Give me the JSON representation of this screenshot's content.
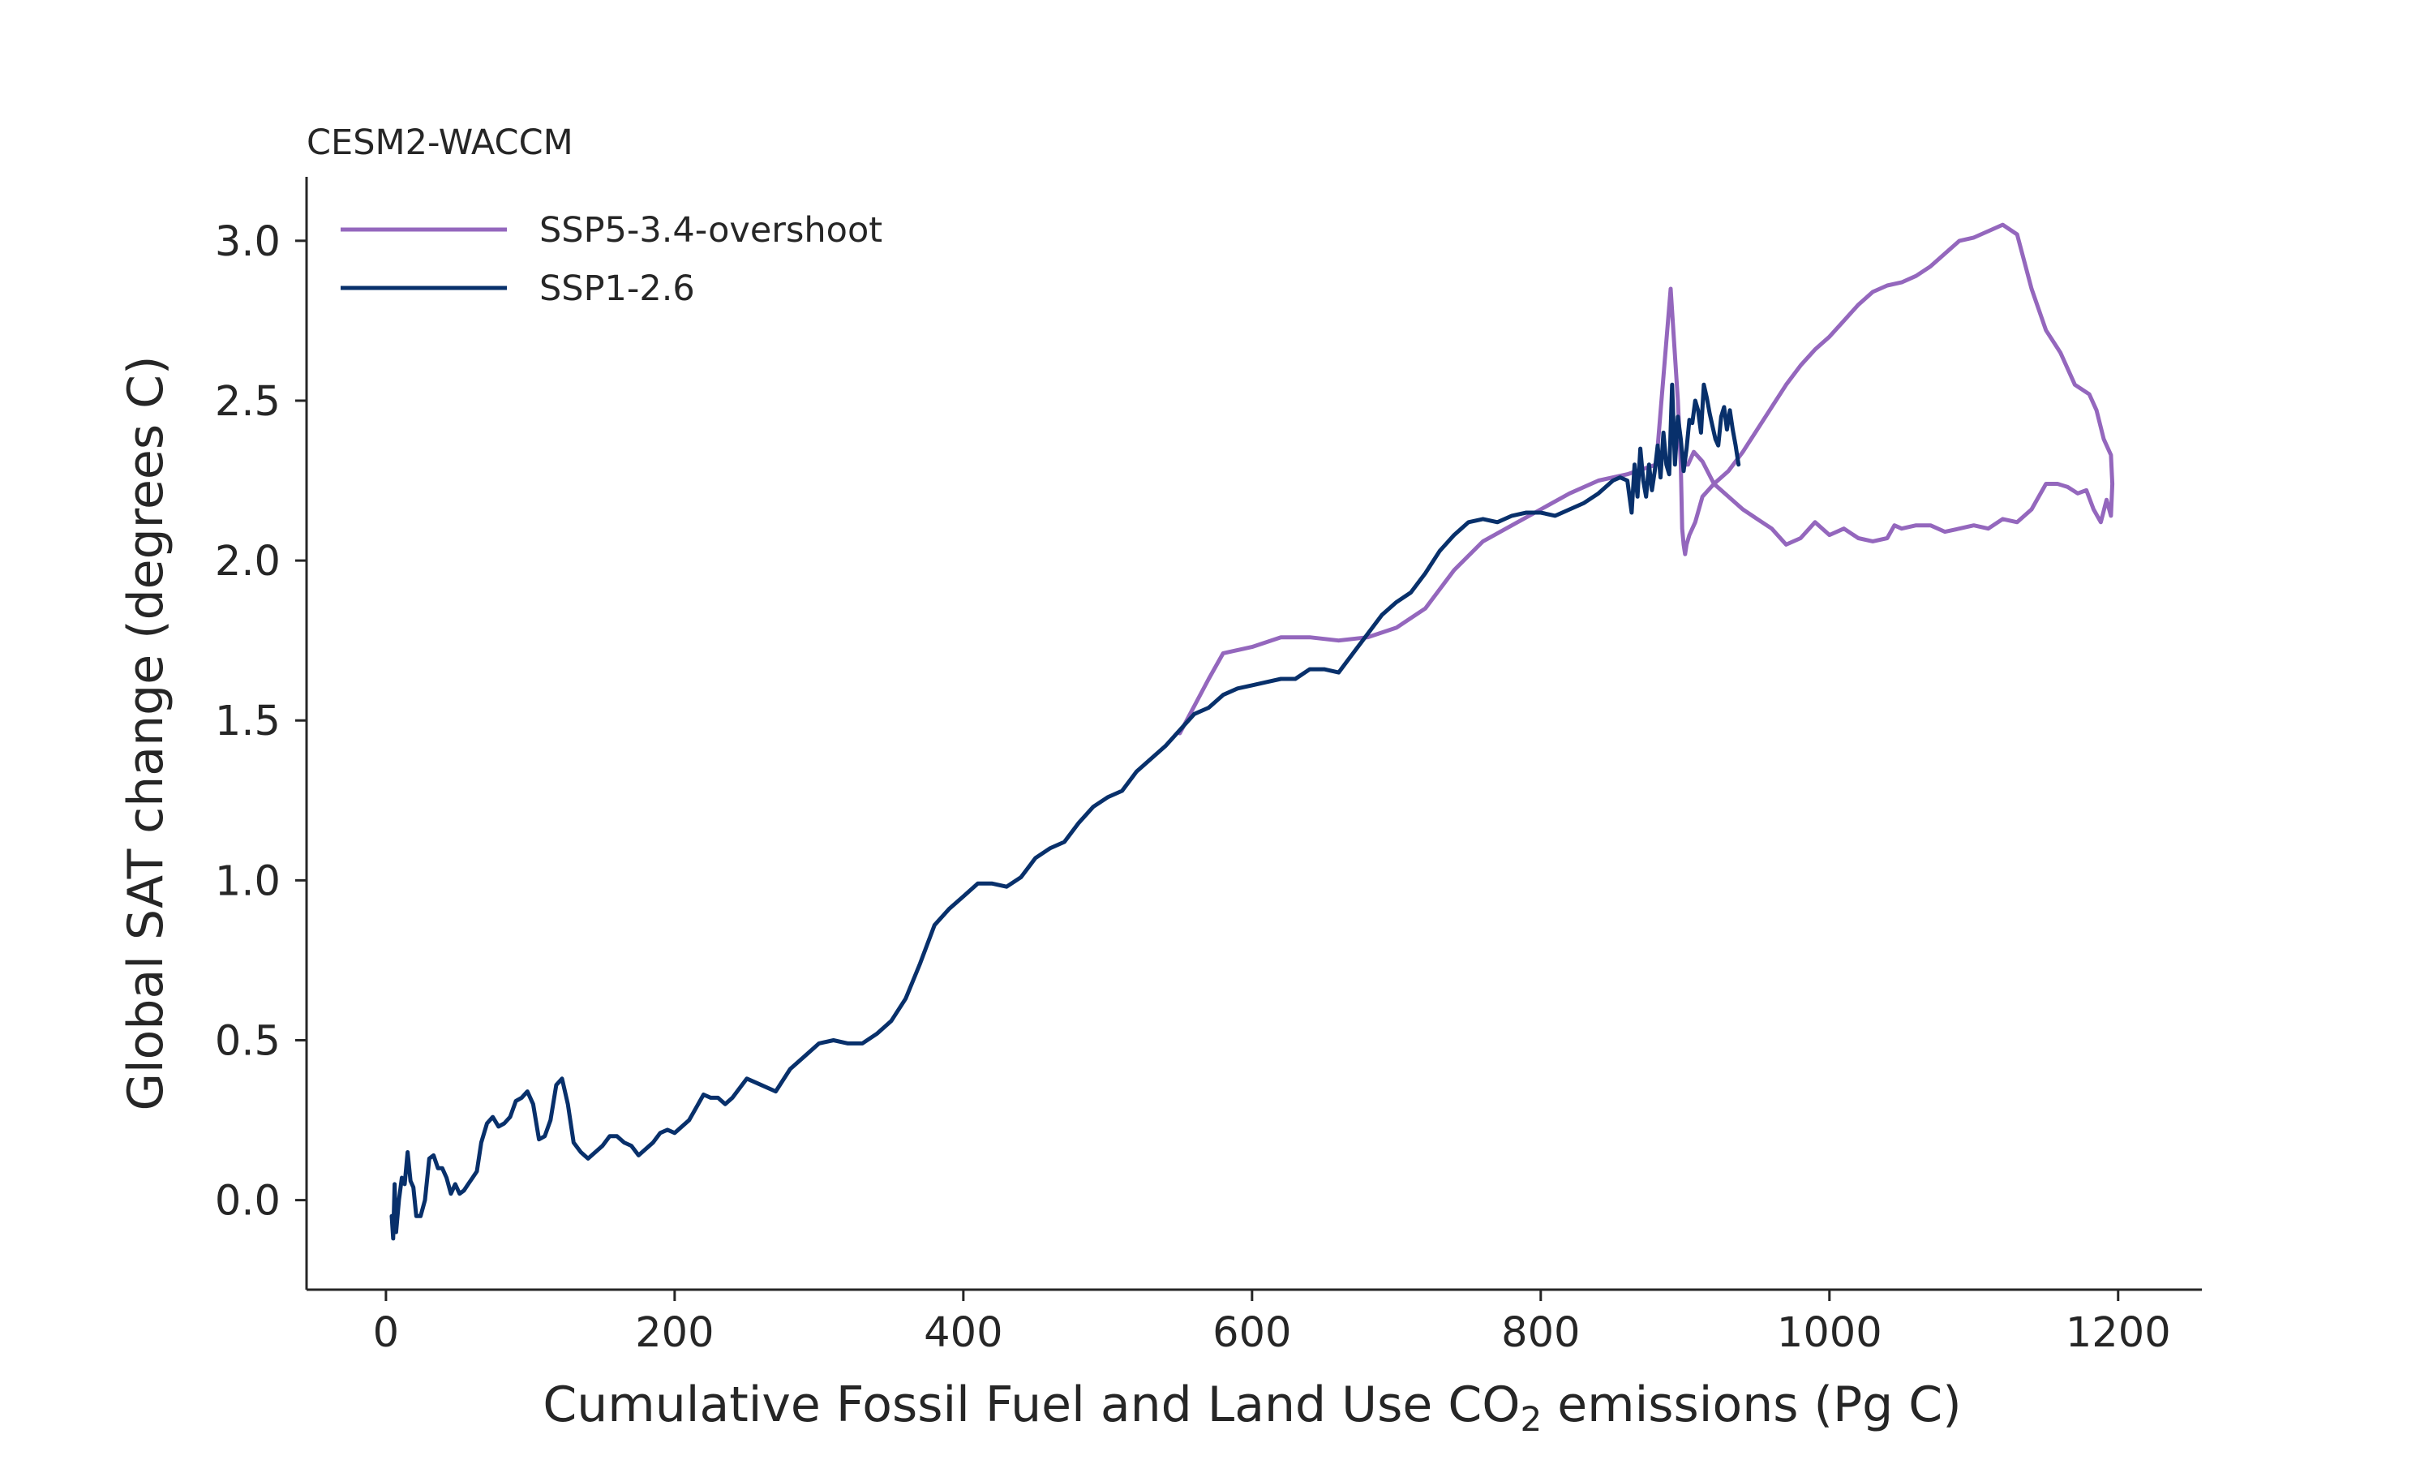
{
  "chart_data": {
    "type": "line",
    "title": "CESM2-WACCM",
    "xlabel_main": "Cumulative Fossil Fuel and Land Use CO",
    "xlabel_sub": "2",
    "xlabel_tail": " emissions (Pg C)",
    "ylabel": "Global SAT change (degrees C)",
    "xlim": [
      -55,
      1258
    ],
    "ylim": [
      -0.28,
      3.2
    ],
    "xticks": [
      0,
      200,
      400,
      600,
      800,
      1000,
      1200
    ],
    "yticks": [
      0.0,
      0.5,
      1.0,
      1.5,
      2.0,
      2.5,
      3.0
    ],
    "xtick_labels": [
      "0",
      "200",
      "400",
      "600",
      "800",
      "1000",
      "1200"
    ],
    "ytick_labels": [
      "0.0",
      "0.5",
      "1.0",
      "1.5",
      "2.0",
      "2.5",
      "3.0"
    ],
    "grid": false,
    "legend_position": "top-left",
    "series": [
      {
        "name": "SSP5-3.4-overshoot",
        "color": "#9467bd",
        "x": [
          550,
          570,
          580,
          600,
          620,
          640,
          660,
          680,
          700,
          720,
          740,
          760,
          780,
          800,
          820,
          840,
          860,
          880,
          890,
          895,
          897,
          898,
          899,
          900,
          901,
          903,
          907,
          912,
          920,
          930,
          940,
          950,
          960,
          970,
          980,
          990,
          1000,
          1010,
          1020,
          1030,
          1040,
          1050,
          1060,
          1070,
          1080,
          1090,
          1100,
          1110,
          1120,
          1130,
          1140,
          1150,
          1160,
          1170,
          1180,
          1185,
          1190,
          1195,
          1196,
          1195,
          1192,
          1188,
          1183,
          1178,
          1172,
          1165,
          1158,
          1150,
          1140,
          1130,
          1120,
          1110,
          1100,
          1090,
          1080,
          1070,
          1060,
          1050,
          1045,
          1040,
          1030,
          1020,
          1010,
          1000,
          990,
          980,
          970,
          960,
          950,
          940,
          930,
          920,
          912,
          906,
          902,
          900
        ],
        "y": [
          1.46,
          1.63,
          1.71,
          1.73,
          1.76,
          1.76,
          1.75,
          1.76,
          1.79,
          1.85,
          1.97,
          2.06,
          2.11,
          2.16,
          2.21,
          2.25,
          2.27,
          2.3,
          2.85,
          2.5,
          2.3,
          2.1,
          2.05,
          2.02,
          2.05,
          2.08,
          2.12,
          2.2,
          2.24,
          2.28,
          2.34,
          2.41,
          2.48,
          2.55,
          2.61,
          2.66,
          2.7,
          2.75,
          2.8,
          2.84,
          2.86,
          2.87,
          2.89,
          2.92,
          2.96,
          3.0,
          3.01,
          3.03,
          3.05,
          3.02,
          2.85,
          2.72,
          2.65,
          2.55,
          2.52,
          2.47,
          2.38,
          2.33,
          2.24,
          2.14,
          2.19,
          2.12,
          2.16,
          2.22,
          2.21,
          2.23,
          2.24,
          2.24,
          2.16,
          2.12,
          2.13,
          2.1,
          2.11,
          2.1,
          2.09,
          2.11,
          2.11,
          2.1,
          2.11,
          2.07,
          2.06,
          2.07,
          2.1,
          2.08,
          2.12,
          2.07,
          2.05,
          2.1,
          2.13,
          2.16,
          2.2,
          2.24,
          2.31,
          2.34,
          2.3,
          2.3
        ]
      },
      {
        "name": "SSP1-2.6",
        "color": "#08306b",
        "x": [
          4,
          5,
          6,
          7,
          9,
          11,
          13,
          15,
          17,
          19,
          21,
          24,
          27,
          30,
          33,
          36,
          39,
          42,
          45,
          48,
          51,
          54,
          57,
          60,
          63,
          66,
          70,
          74,
          78,
          82,
          86,
          90,
          94,
          98,
          102,
          106,
          110,
          114,
          118,
          122,
          126,
          130,
          135,
          140,
          145,
          150,
          155,
          160,
          165,
          170,
          175,
          180,
          185,
          190,
          195,
          200,
          210,
          215,
          220,
          225,
          230,
          235,
          240,
          250,
          260,
          270,
          280,
          290,
          300,
          310,
          320,
          330,
          340,
          350,
          360,
          370,
          380,
          390,
          400,
          410,
          420,
          430,
          440,
          450,
          460,
          470,
          480,
          490,
          500,
          510,
          520,
          530,
          540,
          550,
          560,
          570,
          580,
          590,
          600,
          610,
          620,
          630,
          640,
          650,
          660,
          670,
          680,
          690,
          700,
          710,
          720,
          730,
          740,
          750,
          760,
          770,
          780,
          790,
          800,
          810,
          820,
          830,
          840,
          850,
          855,
          860,
          863,
          865,
          867,
          869,
          871,
          873,
          875,
          877,
          879,
          881,
          883,
          885,
          887,
          889,
          891,
          893,
          895,
          897,
          899,
          901,
          903,
          905,
          907,
          909,
          911,
          913,
          915,
          917,
          919,
          921,
          923,
          925,
          927,
          929,
          931,
          933,
          935,
          937
        ],
        "y": [
          -0.05,
          -0.12,
          0.05,
          -0.1,
          0.0,
          0.07,
          0.05,
          0.15,
          0.06,
          0.04,
          -0.05,
          -0.05,
          0.0,
          0.13,
          0.14,
          0.1,
          0.1,
          0.07,
          0.02,
          0.05,
          0.02,
          0.03,
          0.05,
          0.07,
          0.09,
          0.18,
          0.24,
          0.26,
          0.23,
          0.24,
          0.26,
          0.31,
          0.32,
          0.34,
          0.3,
          0.19,
          0.2,
          0.25,
          0.36,
          0.38,
          0.3,
          0.18,
          0.15,
          0.13,
          0.15,
          0.17,
          0.2,
          0.2,
          0.18,
          0.17,
          0.14,
          0.16,
          0.18,
          0.21,
          0.22,
          0.21,
          0.25,
          0.29,
          0.33,
          0.32,
          0.32,
          0.3,
          0.32,
          0.38,
          0.36,
          0.34,
          0.41,
          0.45,
          0.49,
          0.5,
          0.49,
          0.49,
          0.52,
          0.56,
          0.63,
          0.74,
          0.86,
          0.91,
          0.95,
          0.99,
          0.99,
          0.98,
          1.01,
          1.07,
          1.1,
          1.12,
          1.18,
          1.23,
          1.26,
          1.28,
          1.34,
          1.38,
          1.42,
          1.47,
          1.52,
          1.54,
          1.58,
          1.6,
          1.61,
          1.62,
          1.63,
          1.63,
          1.66,
          1.66,
          1.65,
          1.71,
          1.77,
          1.83,
          1.87,
          1.9,
          1.96,
          2.03,
          2.08,
          2.12,
          2.13,
          2.12,
          2.14,
          2.15,
          2.15,
          2.14,
          2.16,
          2.18,
          2.21,
          2.25,
          2.26,
          2.25,
          2.15,
          2.3,
          2.2,
          2.35,
          2.25,
          2.2,
          2.3,
          2.22,
          2.28,
          2.36,
          2.26,
          2.4,
          2.3,
          2.27,
          2.55,
          2.3,
          2.45,
          2.38,
          2.28,
          2.35,
          2.44,
          2.43,
          2.5,
          2.47,
          2.4,
          2.55,
          2.51,
          2.46,
          2.42,
          2.38,
          2.36,
          2.45,
          2.48,
          2.41,
          2.47,
          2.41,
          2.36,
          2.3
        ]
      }
    ]
  }
}
